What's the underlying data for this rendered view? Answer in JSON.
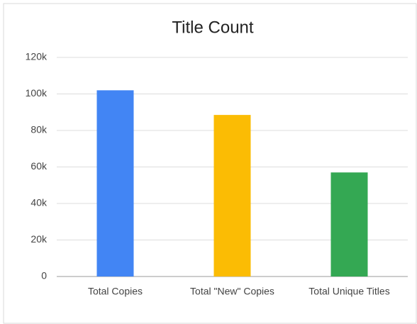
{
  "chart_data": {
    "type": "bar",
    "title": "Title Count",
    "categories": [
      "Total Copies",
      "Total \"New\" Copies",
      "Total Unique Titles"
    ],
    "values": [
      102000,
      88500,
      57000
    ],
    "colors": [
      "#4285f4",
      "#fbbc04",
      "#34a853"
    ],
    "ylim": [
      0,
      120000
    ],
    "yticks": [
      0,
      {
        "value": 20000,
        "label": "20k"
      },
      {
        "value": 40000,
        "label": "40k"
      },
      {
        "value": 60000,
        "label": "60k"
      },
      {
        "value": 80000,
        "label": "80k"
      },
      {
        "value": 100000,
        "label": "100k"
      },
      {
        "value": 120000,
        "label": "120k"
      }
    ],
    "grid": true
  }
}
